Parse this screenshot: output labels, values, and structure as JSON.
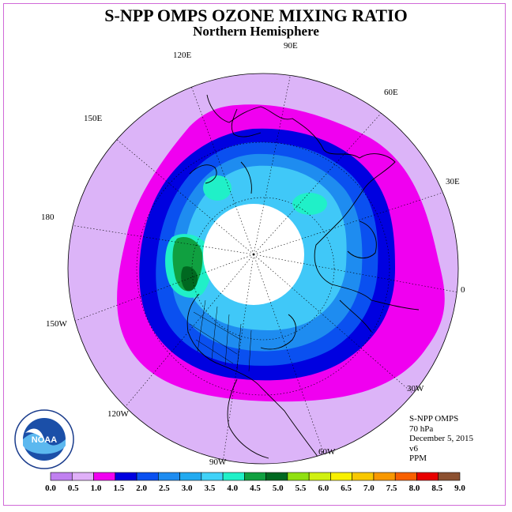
{
  "title": "S-NPP OMPS OZONE MIXING RATIO",
  "subtitle": "Northern Hemisphere",
  "longitude_labels": [
    "90E",
    "60E",
    "30E",
    "0",
    "30W",
    "60W",
    "90W",
    "120W",
    "150W",
    "180",
    "150E",
    "120E"
  ],
  "info": {
    "instrument": "S-NPP OMPS",
    "level": "70 hPa",
    "date": "December 5, 2015",
    "version": "v6",
    "units": "PPM"
  },
  "logo": {
    "text": "NOAA",
    "ring_text": "NATIONAL OCEANIC AND ATMOSPHERIC ADMINISTRATION · U.S. DEPARTMENT OF COMMERCE"
  },
  "colorbar": {
    "ticks": [
      "0.0",
      "0.5",
      "1.0",
      "1.5",
      "2.0",
      "2.5",
      "3.0",
      "3.5",
      "4.0",
      "4.5",
      "5.0",
      "5.5",
      "6.0",
      "6.5",
      "7.0",
      "7.5",
      "8.0",
      "8.5",
      "9.0"
    ],
    "colors": [
      "#c080f0",
      "#e0b0f8",
      "#f000f0",
      "#0000e0",
      "#0a50f0",
      "#1e8cf0",
      "#22aaf0",
      "#40d2f8",
      "#20f0c8",
      "#10a040",
      "#006820",
      "#90e010",
      "#d0f010",
      "#f8f000",
      "#f8c800",
      "#f89800",
      "#f86000",
      "#e80000",
      "#8c5030"
    ]
  },
  "colors": {
    "outer_disk": "#dcb4f8",
    "magenta_band": "#f000f0",
    "frame": "#d06ad8"
  }
}
